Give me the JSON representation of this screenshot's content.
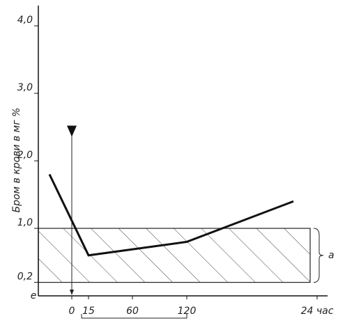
{
  "chart_data": {
    "type": "line",
    "y_label": "Бром в крови в мг %",
    "x": [
      -20,
      15,
      120,
      1200
    ],
    "values": [
      1.8,
      0.6,
      0.8,
      1.4
    ],
    "color": "#111111",
    "xticks": [
      {
        "value": 0,
        "label": "0"
      },
      {
        "value": 15,
        "label": "15"
      },
      {
        "value": 60,
        "label": "60"
      },
      {
        "value": 120,
        "label": "120"
      },
      {
        "value": 1440,
        "label": "24 час"
      }
    ],
    "ylim": [
      0,
      4.3
    ],
    "yticks": [
      {
        "value": 0.2,
        "label": "0,2"
      },
      {
        "value": 1.0,
        "label": "1,0"
      },
      {
        "value": 2.0,
        "label": "2,0"
      },
      {
        "value": 3.0,
        "label": "3,0"
      },
      {
        "value": 4.0,
        "label": "4,0"
      }
    ],
    "norm_band": [
      0.2,
      1.0
    ],
    "norm_label": "a",
    "marker_x": 0,
    "marker_top": 2.5,
    "origin_label": "e"
  }
}
